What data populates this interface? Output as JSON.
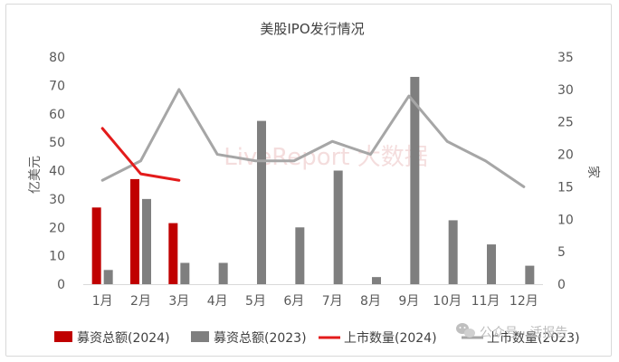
{
  "chart_data": {
    "type": "bar",
    "title": "美股IPO发行情况",
    "categories": [
      "1月",
      "2月",
      "3月",
      "4月",
      "5月",
      "6月",
      "7月",
      "8月",
      "9月",
      "10月",
      "11月",
      "12月"
    ],
    "y_left": {
      "label": "亿美元",
      "range": [
        0,
        80
      ],
      "ticks": [
        0,
        10,
        20,
        30,
        40,
        50,
        60,
        70,
        80
      ]
    },
    "y_right": {
      "label": "家",
      "range": [
        0,
        35
      ],
      "ticks": [
        0,
        5,
        10,
        15,
        20,
        25,
        30,
        35
      ]
    },
    "grid": false,
    "legend_position": "bottom",
    "series": [
      {
        "name": "募资总额(2024)",
        "kind": "bar",
        "axis": "left",
        "color": "#c00000",
        "values": [
          27,
          37,
          21.5,
          null,
          null,
          null,
          null,
          null,
          null,
          null,
          null,
          null
        ]
      },
      {
        "name": "募资总额(2023)",
        "kind": "bar",
        "axis": "left",
        "color": "#7f7f7f",
        "values": [
          5,
          30,
          7.5,
          7.5,
          57.5,
          20,
          40,
          2.5,
          73,
          22.5,
          14,
          6.5
        ]
      },
      {
        "name": "上市数量(2024)",
        "kind": "line",
        "axis": "right",
        "color": "#e31b1b",
        "values": [
          24,
          17,
          16,
          null,
          null,
          null,
          null,
          null,
          null,
          null,
          null,
          null
        ]
      },
      {
        "name": "上市数量(2023)",
        "kind": "line",
        "axis": "right",
        "color": "#a6a6a6",
        "values": [
          16,
          19,
          30,
          20,
          19,
          19,
          22,
          20,
          29,
          22,
          19,
          15
        ]
      }
    ]
  },
  "watermark": {
    "text": "LiveReport 大数据"
  },
  "source_badge": {
    "icon": "wechat-icon",
    "text": "公众号 · 活报告"
  }
}
